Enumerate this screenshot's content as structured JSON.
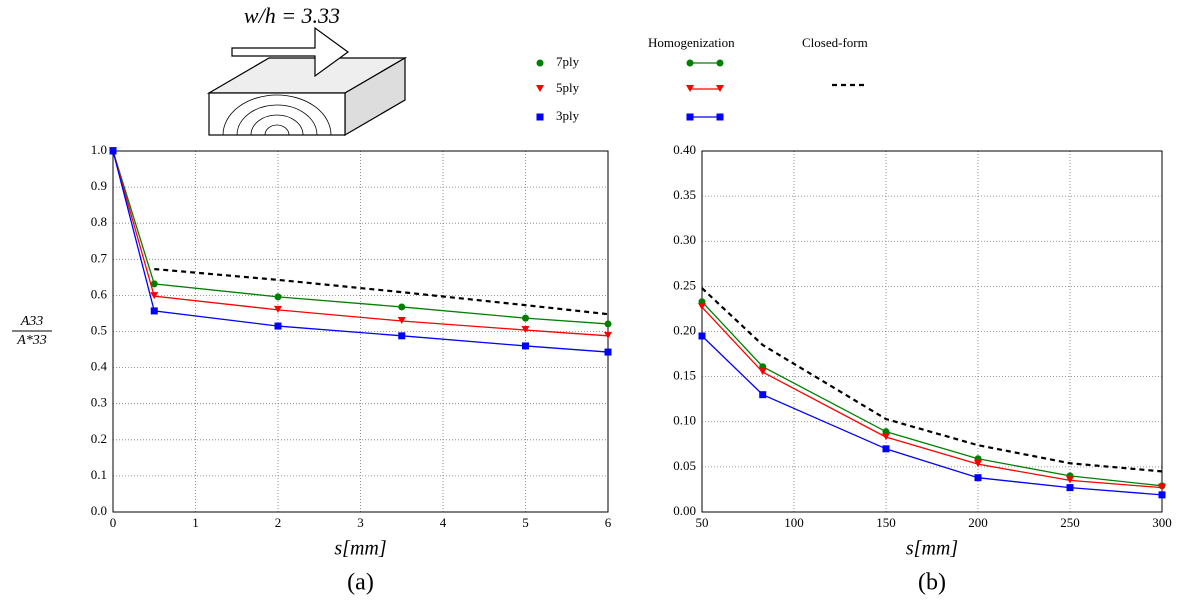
{
  "illustration": {
    "label": "w/h = 3.33"
  },
  "legend_header": "Homogenization",
  "chart_data": [
    {
      "type": "line",
      "caption": "(a)",
      "xlabel": "s[mm]",
      "ylabel": {
        "numerator": "A33",
        "denominator": "A*33"
      },
      "x": [
        0,
        0.5,
        2,
        3.5,
        5,
        6
      ],
      "xlim": [
        0,
        6
      ],
      "xticks": [
        0,
        1,
        2,
        3,
        4,
        5,
        6
      ],
      "ylim": [
        0,
        1
      ],
      "yticks": [
        {
          "value": 0,
          "label": "0.0"
        },
        {
          "value": 0.1,
          "label": "0.1"
        },
        {
          "value": 0.2,
          "label": "0.2"
        },
        {
          "value": 0.3,
          "label": "0.3"
        },
        {
          "value": 0.4,
          "label": "0.4"
        },
        {
          "value": 0.5,
          "label": "0.5"
        },
        {
          "value": 0.6,
          "label": "0.6"
        },
        {
          "value": 0.7,
          "label": "0.7"
        },
        {
          "value": 0.8,
          "label": "0.8"
        },
        {
          "value": 0.9,
          "label": "0.9"
        },
        {
          "value": 1,
          "label": "1.0"
        }
      ],
      "grid": true,
      "series": [
        {
          "name": "7ply",
          "color": "#008000",
          "marker": "circle",
          "values": [
            1.0,
            0.632,
            0.596,
            0.568,
            0.537,
            0.521
          ]
        },
        {
          "name": "5ply",
          "color": "#ff0000",
          "marker": "triangle",
          "values": [
            1.0,
            0.598,
            0.56,
            0.529,
            0.504,
            0.488
          ]
        },
        {
          "name": "3ply",
          "color": "#0000ff",
          "marker": "square",
          "values": [
            1.0,
            0.557,
            0.515,
            0.488,
            0.46,
            0.443
          ]
        },
        {
          "name": "Closed-form",
          "color": "#000000",
          "dashed": true,
          "values": [
            null,
            0.673,
            0.643,
            0.609,
            0.573,
            0.548
          ]
        }
      ]
    },
    {
      "type": "line",
      "caption": "(b)",
      "xlabel": "s[mm]",
      "x": [
        50,
        83,
        150,
        200,
        250,
        300
      ],
      "xlim": [
        50,
        300
      ],
      "xticks": [
        50,
        100,
        150,
        200,
        250,
        300
      ],
      "ylim": [
        0,
        0.4
      ],
      "yticks": [
        {
          "value": 0,
          "label": "0.00"
        },
        {
          "value": 0.05,
          "label": "0.05"
        },
        {
          "value": 0.1,
          "label": "0.10"
        },
        {
          "value": 0.15,
          "label": "0.15"
        },
        {
          "value": 0.2,
          "label": "0.20"
        },
        {
          "value": 0.25,
          "label": "0.25"
        },
        {
          "value": 0.3,
          "label": "0.30"
        },
        {
          "value": 0.35,
          "label": "0.35"
        },
        {
          "value": 0.4,
          "label": "0.40"
        }
      ],
      "grid": true,
      "series": [
        {
          "name": "7ply",
          "color": "#008000",
          "marker": "circle",
          "values": [
            0.233,
            0.161,
            0.089,
            0.059,
            0.04,
            0.029
          ]
        },
        {
          "name": "5ply",
          "color": "#ff0000",
          "marker": "triangle",
          "values": [
            0.227,
            0.155,
            0.083,
            0.053,
            0.035,
            0.027
          ]
        },
        {
          "name": "3ply",
          "color": "#0000ff",
          "marker": "square",
          "values": [
            0.195,
            0.13,
            0.07,
            0.038,
            0.027,
            0.019
          ]
        },
        {
          "name": "Closed-form",
          "color": "#000000",
          "dashed": true,
          "values": [
            0.248,
            0.185,
            0.103,
            0.074,
            0.054,
            0.045
          ]
        }
      ]
    }
  ]
}
